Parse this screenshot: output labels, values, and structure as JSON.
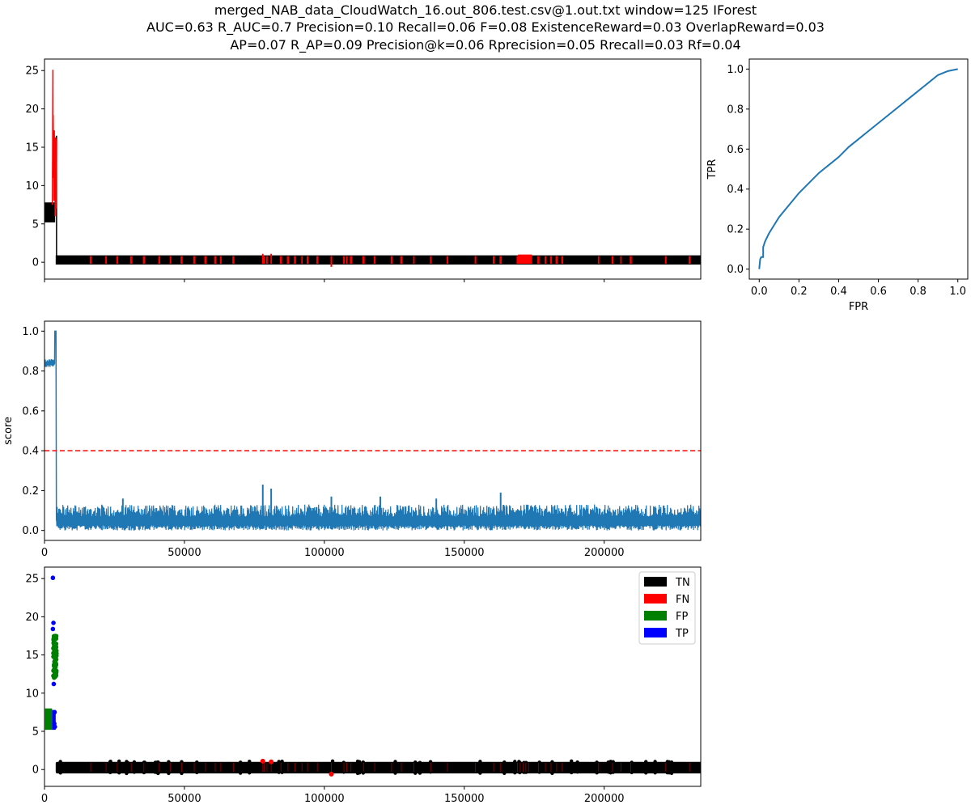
{
  "title": {
    "line1": "merged_NAB_data_CloudWatch_16.out_806.test.csv@1.out.txt     window=125   IForest",
    "line2": "AUC=0.63     R_AUC=0.7     Precision=0.10     Recall=0.06     F=0.08     ExistenceReward=0.03   OverlapReward=0.03",
    "line3": "AP=0.07     R_AP=0.09     Precision@k=0.06     Rprecision=0.05     Rrecall=0.03    Rf=0.04"
  },
  "colors": {
    "normal": "#000000",
    "anomaly": "#ff0000",
    "score": "#1f77b4",
    "threshold": "#ff0000",
    "roc": "#1f77b4",
    "tn": "#000000",
    "fn": "#ff0000",
    "fp": "#008000",
    "tp": "#0000ff"
  },
  "chart_data": [
    {
      "id": "series",
      "type": "line",
      "xlim": [
        0,
        234500
      ],
      "ylim": [
        -2.2,
        26.5
      ],
      "yticks": [
        "0",
        "5",
        "10",
        "15",
        "20",
        "25"
      ],
      "ytick_values": [
        0,
        5,
        10,
        15,
        20,
        25
      ],
      "xtick_values": [
        0,
        50000,
        100000,
        150000,
        200000
      ],
      "normal_band": {
        "x": [
          4000,
          234500
        ],
        "y": [
          -0.3,
          0.9
        ]
      },
      "initial_block": {
        "x": [
          0,
          3800
        ],
        "y": [
          5.2,
          7.8
        ]
      },
      "anomaly_peak": {
        "x": [
          2800,
          4300
        ],
        "y": [
          5.5,
          25.1
        ]
      },
      "anomaly_x": [
        16500,
        22000,
        26000,
        31000,
        35500,
        41000,
        45000,
        49000,
        53500,
        57500,
        61000,
        63000,
        67500,
        78000,
        78500,
        79500,
        81000,
        84500,
        87000,
        89500,
        92000,
        94000,
        97500,
        102500,
        107000,
        108000,
        109500,
        114000,
        118000,
        124000,
        127500,
        132000,
        138000,
        144000,
        154000,
        160500,
        163000,
        169000,
        170000,
        171000,
        172000,
        173000,
        176500,
        179000,
        181000,
        183000,
        185000,
        198000,
        203000,
        206000,
        209500,
        222000,
        230500
      ]
    },
    {
      "id": "score",
      "type": "line",
      "ylabel": "score",
      "xlim": [
        0,
        234500
      ],
      "ylim": [
        -0.05,
        1.05
      ],
      "yticks": [
        "0.0",
        "0.2",
        "0.4",
        "0.6",
        "0.8",
        "1.0"
      ],
      "ytick_values": [
        0,
        0.2,
        0.4,
        0.6,
        0.8,
        1.0
      ],
      "xticks": [
        "0",
        "50000",
        "100000",
        "150000",
        "200000"
      ],
      "xtick_values": [
        0,
        50000,
        100000,
        150000,
        200000
      ],
      "threshold": 0.4,
      "initial_level": [
        0.82,
        0.86
      ],
      "initial_end": 3600,
      "peak_end": 4100,
      "noise_band": [
        0.0,
        0.12
      ],
      "spikes": [
        {
          "x": 78000,
          "y": 0.23
        },
        {
          "x": 81000,
          "y": 0.21
        },
        {
          "x": 102500,
          "y": 0.17
        },
        {
          "x": 120000,
          "y": 0.17
        },
        {
          "x": 163000,
          "y": 0.19
        },
        {
          "x": 28000,
          "y": 0.16
        },
        {
          "x": 140000,
          "y": 0.16
        }
      ]
    },
    {
      "id": "roc",
      "type": "line",
      "xlabel": "FPR",
      "ylabel": "TPR",
      "xlim": [
        -0.05,
        1.05
      ],
      "ylim": [
        -0.05,
        1.05
      ],
      "xticks": [
        "0.0",
        "0.2",
        "0.4",
        "0.6",
        "0.8",
        "1.0"
      ],
      "yticks": [
        "0.0",
        "0.2",
        "0.4",
        "0.6",
        "0.8",
        "1.0"
      ],
      "tick_values": [
        0,
        0.2,
        0.4,
        0.6,
        0.8,
        1.0
      ],
      "x": [
        0.0,
        0.005,
        0.01,
        0.02,
        0.02,
        0.03,
        0.05,
        0.1,
        0.15,
        0.2,
        0.25,
        0.3,
        0.35,
        0.4,
        0.45,
        0.5,
        0.55,
        0.6,
        0.65,
        0.7,
        0.75,
        0.8,
        0.85,
        0.9,
        0.95,
        1.0
      ],
      "y": [
        0.0,
        0.05,
        0.06,
        0.06,
        0.11,
        0.14,
        0.18,
        0.26,
        0.32,
        0.38,
        0.43,
        0.48,
        0.52,
        0.56,
        0.61,
        0.65,
        0.69,
        0.73,
        0.77,
        0.81,
        0.85,
        0.89,
        0.93,
        0.97,
        0.99,
        1.0
      ]
    },
    {
      "id": "confusion",
      "type": "scatter",
      "xlim": [
        0,
        234500
      ],
      "ylim": [
        -2.2,
        26.5
      ],
      "yticks": [
        "0",
        "5",
        "10",
        "15",
        "20",
        "25"
      ],
      "ytick_values": [
        0,
        5,
        10,
        15,
        20,
        25
      ],
      "xticks": [
        "0",
        "50000",
        "100000",
        "150000",
        "200000"
      ],
      "xtick_values": [
        0,
        50000,
        100000,
        150000,
        200000
      ],
      "legend": [
        "TN",
        "FN",
        "FP",
        "TP"
      ],
      "legend_loc": "upper right",
      "tp_points": [
        {
          "x": 3000,
          "y": 25.1
        },
        {
          "x": 3200,
          "y": 19.2
        },
        {
          "x": 3000,
          "y": 18.4
        },
        {
          "x": 3300,
          "y": 11.2
        },
        {
          "x": 3600,
          "y": 7.5
        },
        {
          "x": 3500,
          "y": 6.0
        },
        {
          "x": 3700,
          "y": 5.6
        }
      ],
      "fp_cluster": {
        "x": [
          3100,
          4300
        ],
        "y": [
          12.0,
          17.5
        ]
      },
      "fp_block": {
        "x": [
          200,
          2700
        ],
        "y": [
          5.2,
          8.0
        ]
      },
      "tp_block": {
        "x": [
          2700,
          4000
        ],
        "y": [
          5.2,
          7.8
        ]
      },
      "fn_points": [
        {
          "x": 102500,
          "y": -0.6
        },
        {
          "x": 78000,
          "y": 1.1
        },
        {
          "x": 81000,
          "y": 1.0
        }
      ]
    }
  ]
}
